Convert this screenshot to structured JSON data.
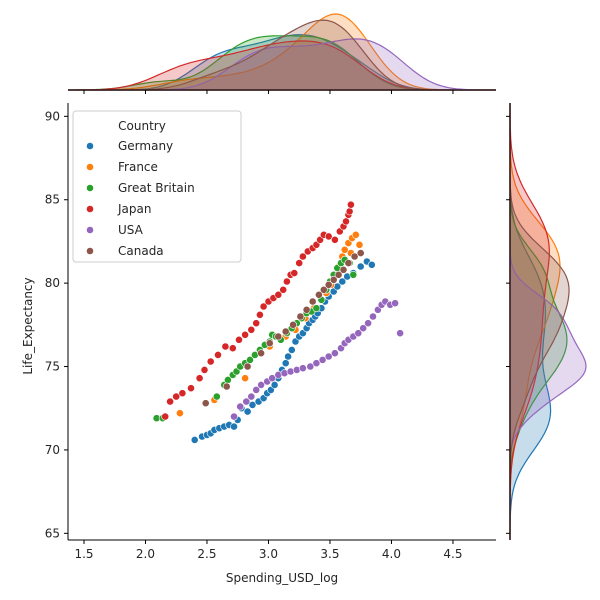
{
  "chart_data": {
    "type": "scatter",
    "xlabel": "Spending_USD_log",
    "ylabel": "Life_Expectancy",
    "xlim": [
      1.37,
      4.85
    ],
    "ylim": [
      64.6,
      90.8
    ],
    "xticks": [
      1.5,
      2.0,
      2.5,
      3.0,
      3.5,
      4.0,
      4.5
    ],
    "xtick_labels": [
      "1.5",
      "2.0",
      "2.5",
      "3.0",
      "3.5",
      "4.0",
      "4.5"
    ],
    "yticks": [
      65,
      70,
      75,
      80,
      85,
      90
    ],
    "ytick_labels": [
      "65",
      "70",
      "75",
      "80",
      "85",
      "90"
    ],
    "legend": {
      "title": "Country",
      "placement": "top-left"
    },
    "marginals": {
      "top": "kde",
      "right": "kde"
    },
    "series": [
      {
        "name": "Germany",
        "color": "#1f77b4",
        "points": [
          [
            2.4,
            70.6
          ],
          [
            2.46,
            70.8
          ],
          [
            2.5,
            70.9
          ],
          [
            2.53,
            71.0
          ],
          [
            2.56,
            71.2
          ],
          [
            2.6,
            71.3
          ],
          [
            2.64,
            71.4
          ],
          [
            2.68,
            71.5
          ],
          [
            2.72,
            71.4
          ],
          [
            2.75,
            71.8
          ],
          [
            2.78,
            72.5
          ],
          [
            2.83,
            72.3
          ],
          [
            2.87,
            72.7
          ],
          [
            2.92,
            72.9
          ],
          [
            2.96,
            73.1
          ],
          [
            2.99,
            73.4
          ],
          [
            3.02,
            73.6
          ],
          [
            3.05,
            73.9
          ],
          [
            3.08,
            74.3
          ],
          [
            3.11,
            74.8
          ],
          [
            3.14,
            75.2
          ],
          [
            3.16,
            75.6
          ],
          [
            3.19,
            76.0
          ],
          [
            3.22,
            76.5
          ],
          [
            3.25,
            76.8
          ],
          [
            3.28,
            77.0
          ],
          [
            3.31,
            77.3
          ],
          [
            3.33,
            77.6
          ],
          [
            3.36,
            77.8
          ],
          [
            3.38,
            78.0
          ],
          [
            3.4,
            78.2
          ],
          [
            3.43,
            78.5
          ],
          [
            3.46,
            78.9
          ],
          [
            3.49,
            79.2
          ],
          [
            3.53,
            79.5
          ],
          [
            3.56,
            79.8
          ],
          [
            3.6,
            80.1
          ],
          [
            3.64,
            80.4
          ],
          [
            3.69,
            80.6
          ],
          [
            3.75,
            81.0
          ],
          [
            3.8,
            81.3
          ],
          [
            3.84,
            81.1
          ]
        ]
      },
      {
        "name": "France",
        "color": "#ff7f0e",
        "points": [
          [
            2.28,
            72.2
          ],
          [
            2.56,
            73.0
          ],
          [
            2.81,
            74.3
          ],
          [
            3.01,
            76.2
          ],
          [
            3.14,
            76.8
          ],
          [
            3.22,
            77.2
          ],
          [
            3.3,
            77.9
          ],
          [
            3.37,
            78.5
          ],
          [
            3.43,
            79.0
          ],
          [
            3.47,
            79.4
          ],
          [
            3.51,
            79.9
          ],
          [
            3.54,
            80.4
          ],
          [
            3.57,
            81.0
          ],
          [
            3.6,
            81.6
          ],
          [
            3.62,
            82.0
          ],
          [
            3.65,
            82.4
          ],
          [
            3.68,
            82.7
          ],
          [
            3.71,
            82.9
          ],
          [
            3.74,
            82.3
          ],
          [
            3.67,
            81.8
          ]
        ]
      },
      {
        "name": "Great Britain",
        "color": "#2ca02c",
        "points": [
          [
            2.09,
            71.9
          ],
          [
            2.14,
            71.9
          ],
          [
            2.58,
            73.2
          ],
          [
            2.64,
            73.9
          ],
          [
            2.67,
            74.2
          ],
          [
            2.71,
            74.5
          ],
          [
            2.74,
            74.7
          ],
          [
            2.77,
            75.0
          ],
          [
            2.81,
            75.2
          ],
          [
            2.85,
            75.4
          ],
          [
            2.89,
            75.7
          ],
          [
            2.93,
            76.0
          ],
          [
            2.97,
            76.3
          ],
          [
            3.01,
            76.5
          ],
          [
            3.03,
            76.9
          ],
          [
            3.06,
            76.8
          ],
          [
            3.1,
            76.6
          ],
          [
            3.15,
            77.0
          ],
          [
            3.19,
            77.3
          ],
          [
            3.23,
            77.6
          ],
          [
            3.27,
            77.9
          ],
          [
            3.31,
            78.2
          ],
          [
            3.35,
            78.3
          ],
          [
            3.39,
            78.5
          ],
          [
            3.43,
            79.0
          ],
          [
            3.47,
            79.6
          ],
          [
            3.5,
            80.1
          ],
          [
            3.53,
            80.5
          ],
          [
            3.56,
            80.9
          ],
          [
            3.59,
            81.2
          ],
          [
            3.62,
            81.4
          ],
          [
            3.66,
            81.2
          ],
          [
            3.69,
            80.5
          ]
        ]
      },
      {
        "name": "Japan",
        "color": "#d62728",
        "points": [
          [
            2.16,
            72.0
          ],
          [
            2.2,
            72.9
          ],
          [
            2.25,
            73.2
          ],
          [
            2.3,
            73.4
          ],
          [
            2.37,
            73.7
          ],
          [
            2.44,
            74.3
          ],
          [
            2.48,
            74.8
          ],
          [
            2.53,
            75.3
          ],
          [
            2.59,
            75.7
          ],
          [
            2.65,
            76.2
          ],
          [
            2.71,
            76.1
          ],
          [
            2.76,
            76.6
          ],
          [
            2.81,
            76.9
          ],
          [
            2.86,
            77.2
          ],
          [
            2.9,
            77.6
          ],
          [
            2.93,
            78.1
          ],
          [
            2.96,
            78.6
          ],
          [
            3.0,
            78.9
          ],
          [
            3.04,
            79.1
          ],
          [
            3.08,
            79.3
          ],
          [
            3.12,
            79.6
          ],
          [
            3.15,
            80.1
          ],
          [
            3.18,
            80.5
          ],
          [
            3.21,
            80.6
          ],
          [
            3.25,
            81.2
          ],
          [
            3.28,
            81.6
          ],
          [
            3.32,
            81.9
          ],
          [
            3.36,
            82.1
          ],
          [
            3.39,
            82.3
          ],
          [
            3.42,
            82.6
          ],
          [
            3.45,
            82.9
          ],
          [
            3.49,
            82.8
          ],
          [
            3.54,
            82.6
          ],
          [
            3.58,
            83.1
          ],
          [
            3.61,
            83.4
          ],
          [
            3.63,
            83.7
          ],
          [
            3.65,
            84.1
          ],
          [
            3.66,
            84.3
          ],
          [
            3.67,
            84.7
          ]
        ]
      },
      {
        "name": "USA",
        "color": "#9467bd",
        "points": [
          [
            2.72,
            72.0
          ],
          [
            2.77,
            72.6
          ],
          [
            2.82,
            72.9
          ],
          [
            2.86,
            73.2
          ],
          [
            2.9,
            73.6
          ],
          [
            2.94,
            73.9
          ],
          [
            2.99,
            74.1
          ],
          [
            3.03,
            74.3
          ],
          [
            3.08,
            74.5
          ],
          [
            3.13,
            74.6
          ],
          [
            3.18,
            74.7
          ],
          [
            3.23,
            74.8
          ],
          [
            3.28,
            74.9
          ],
          [
            3.34,
            75.0
          ],
          [
            3.39,
            75.2
          ],
          [
            3.44,
            75.4
          ],
          [
            3.49,
            75.6
          ],
          [
            3.54,
            75.8
          ],
          [
            3.59,
            76.1
          ],
          [
            3.62,
            76.4
          ],
          [
            3.65,
            76.6
          ],
          [
            3.69,
            76.8
          ],
          [
            3.73,
            77.0
          ],
          [
            3.77,
            77.3
          ],
          [
            3.81,
            77.6
          ],
          [
            3.85,
            78.0
          ],
          [
            3.89,
            78.4
          ],
          [
            3.92,
            78.7
          ],
          [
            3.95,
            78.9
          ],
          [
            3.99,
            78.7
          ],
          [
            4.03,
            78.8
          ],
          [
            4.07,
            77.0
          ]
        ]
      },
      {
        "name": "Canada",
        "color": "#8c564b",
        "points": [
          [
            2.49,
            72.8
          ],
          [
            2.66,
            73.8
          ],
          [
            2.83,
            75.0
          ],
          [
            2.94,
            75.8
          ],
          [
            3.01,
            76.4
          ],
          [
            3.08,
            76.8
          ],
          [
            3.14,
            77.1
          ],
          [
            3.2,
            77.5
          ],
          [
            3.26,
            78.0
          ],
          [
            3.31,
            78.4
          ],
          [
            3.36,
            78.9
          ],
          [
            3.41,
            79.3
          ],
          [
            3.45,
            79.6
          ],
          [
            3.49,
            79.9
          ],
          [
            3.53,
            80.2
          ],
          [
            3.57,
            80.5
          ],
          [
            3.61,
            80.8
          ],
          [
            3.65,
            81.2
          ],
          [
            3.7,
            81.6
          ],
          [
            3.75,
            81.8
          ]
        ]
      }
    ]
  }
}
